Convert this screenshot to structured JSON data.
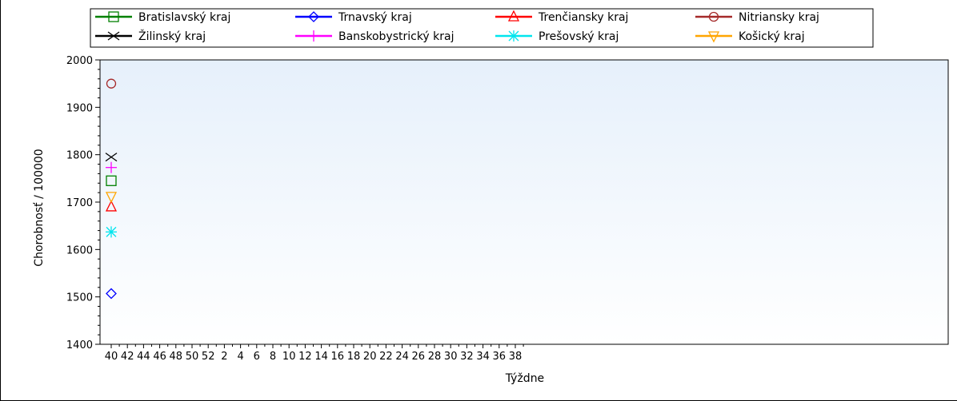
{
  "chart_data": {
    "type": "line",
    "xlabel": "Týždne",
    "ylabel": "Chorobnosť / 100000",
    "ylim": [
      1400,
      2000
    ],
    "y_ticks": [
      1400,
      1500,
      1600,
      1700,
      1800,
      1900,
      2000
    ],
    "x_tick_labels": [
      "40",
      "42",
      "44",
      "46",
      "48",
      "50",
      "52",
      "2",
      "4",
      "6",
      "8",
      "10",
      "12",
      "14",
      "16",
      "18",
      "20",
      "22",
      "24",
      "26",
      "28",
      "30",
      "32",
      "34",
      "36",
      "38"
    ],
    "grid": false,
    "legend_position": "top",
    "plot_background": [
      "#e6f0fb",
      "#ffffff"
    ],
    "series": [
      {
        "name": "Bratislavský kraj",
        "color": "#008000",
        "marker": "square",
        "points": [
          {
            "x": "40",
            "y": 1745
          }
        ]
      },
      {
        "name": "Trnavský kraj",
        "color": "#0000ff",
        "marker": "diamond",
        "points": [
          {
            "x": "40",
            "y": 1507
          }
        ]
      },
      {
        "name": "Trenčiansky kraj",
        "color": "#ff0000",
        "marker": "triangle-up",
        "points": [
          {
            "x": "40",
            "y": 1690
          }
        ]
      },
      {
        "name": "Nitriansky kraj",
        "color": "#a52a2a",
        "marker": "circle",
        "points": [
          {
            "x": "40",
            "y": 1950
          }
        ]
      },
      {
        "name": "Žilinský kraj",
        "color": "#000000",
        "marker": "x",
        "points": [
          {
            "x": "40",
            "y": 1795
          }
        ]
      },
      {
        "name": "Banskobystrický kraj",
        "color": "#ff00ff",
        "marker": "plus",
        "points": [
          {
            "x": "40",
            "y": 1773
          }
        ]
      },
      {
        "name": "Prešovský kraj",
        "color": "#00e5ee",
        "marker": "star",
        "points": [
          {
            "x": "40",
            "y": 1637
          }
        ]
      },
      {
        "name": "Košický kraj",
        "color": "#ffa500",
        "marker": "triangle-down",
        "points": [
          {
            "x": "40",
            "y": 1712
          }
        ]
      }
    ]
  }
}
